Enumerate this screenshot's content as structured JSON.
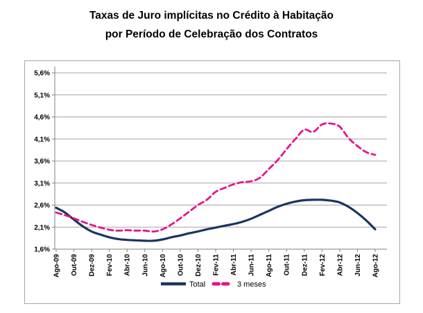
{
  "title": {
    "line1": "Taxas de Juro implícitas no Crédito à Habitação",
    "line2": "por Período de Celebração dos Contratos"
  },
  "colors": {
    "total_line": "#1a3560",
    "tres_meses_line": "#e6148c",
    "gridline": "#a3a3a3",
    "axis": "#7f7f7f",
    "label_text": "#000000",
    "box_border": "#a6a6a6"
  },
  "chart_data": {
    "type": "line",
    "title": "Taxas de Juro implícitas no Crédito à Habitação por Período de Celebração dos Contratos",
    "grid": true,
    "legend_position": "bottom-center",
    "ylim": [
      1.6,
      5.6
    ],
    "y_step": 0.5,
    "y_tick_labels": [
      "5,6%",
      "5,1%",
      "4,6%",
      "4,1%",
      "3,6%",
      "3,1%",
      "2,6%",
      "2,1%",
      "1,6%"
    ],
    "x": [
      "Ago-09",
      "Set-09",
      "Out-09",
      "Nov-09",
      "Dez-09",
      "Jan-10",
      "Fev-10",
      "Mar-10",
      "Abr-10",
      "Mai-10",
      "Jun-10",
      "Jul-10",
      "Ago-10",
      "Set-10",
      "Out-10",
      "Nov-10",
      "Dez-10",
      "Jan-11",
      "Fev-11",
      "Mar-11",
      "Abr-11",
      "Mai-11",
      "Jun-11",
      "Jul-11",
      "Ago-11",
      "Set-11",
      "Out-11",
      "Nov-11",
      "Dez-11",
      "Jan-12",
      "Fev-12",
      "Mar-12",
      "Abr-12",
      "Mai-12",
      "Jun-12",
      "Jul-12",
      "Ago-12"
    ],
    "x_tick_labels": [
      "Ago-09",
      "Out-09",
      "Dez-09",
      "Fev-10",
      "Abr-10",
      "Jun-10",
      "Ago-10",
      "Out-10",
      "Dez-10",
      "Fev-11",
      "Abr-11",
      "Jun-11",
      "Ago-11",
      "Out-11",
      "Dez-11",
      "Fev-12",
      "Abr-12",
      "Jun-12",
      "Ago-12"
    ],
    "x_tick_every": 2,
    "series": [
      {
        "name": "Total",
        "color": "#1a3560",
        "dash": "solid",
        "values": [
          2.54,
          2.43,
          2.27,
          2.12,
          2.0,
          1.93,
          1.87,
          1.83,
          1.81,
          1.8,
          1.79,
          1.79,
          1.82,
          1.87,
          1.91,
          1.96,
          2.0,
          2.05,
          2.09,
          2.13,
          2.17,
          2.22,
          2.29,
          2.38,
          2.47,
          2.56,
          2.63,
          2.68,
          2.71,
          2.72,
          2.72,
          2.7,
          2.66,
          2.56,
          2.42,
          2.25,
          2.05
        ]
      },
      {
        "name": "3 meses",
        "color": "#e6148c",
        "dash": "dashed",
        "values": [
          2.43,
          2.37,
          2.3,
          2.22,
          2.15,
          2.09,
          2.04,
          2.02,
          2.03,
          2.02,
          2.02,
          2.0,
          2.05,
          2.16,
          2.3,
          2.45,
          2.6,
          2.72,
          2.9,
          2.99,
          3.07,
          3.12,
          3.14,
          3.22,
          3.42,
          3.62,
          3.87,
          4.1,
          4.31,
          4.26,
          4.43,
          4.45,
          4.38,
          4.12,
          3.94,
          3.8,
          3.74
        ]
      }
    ]
  }
}
